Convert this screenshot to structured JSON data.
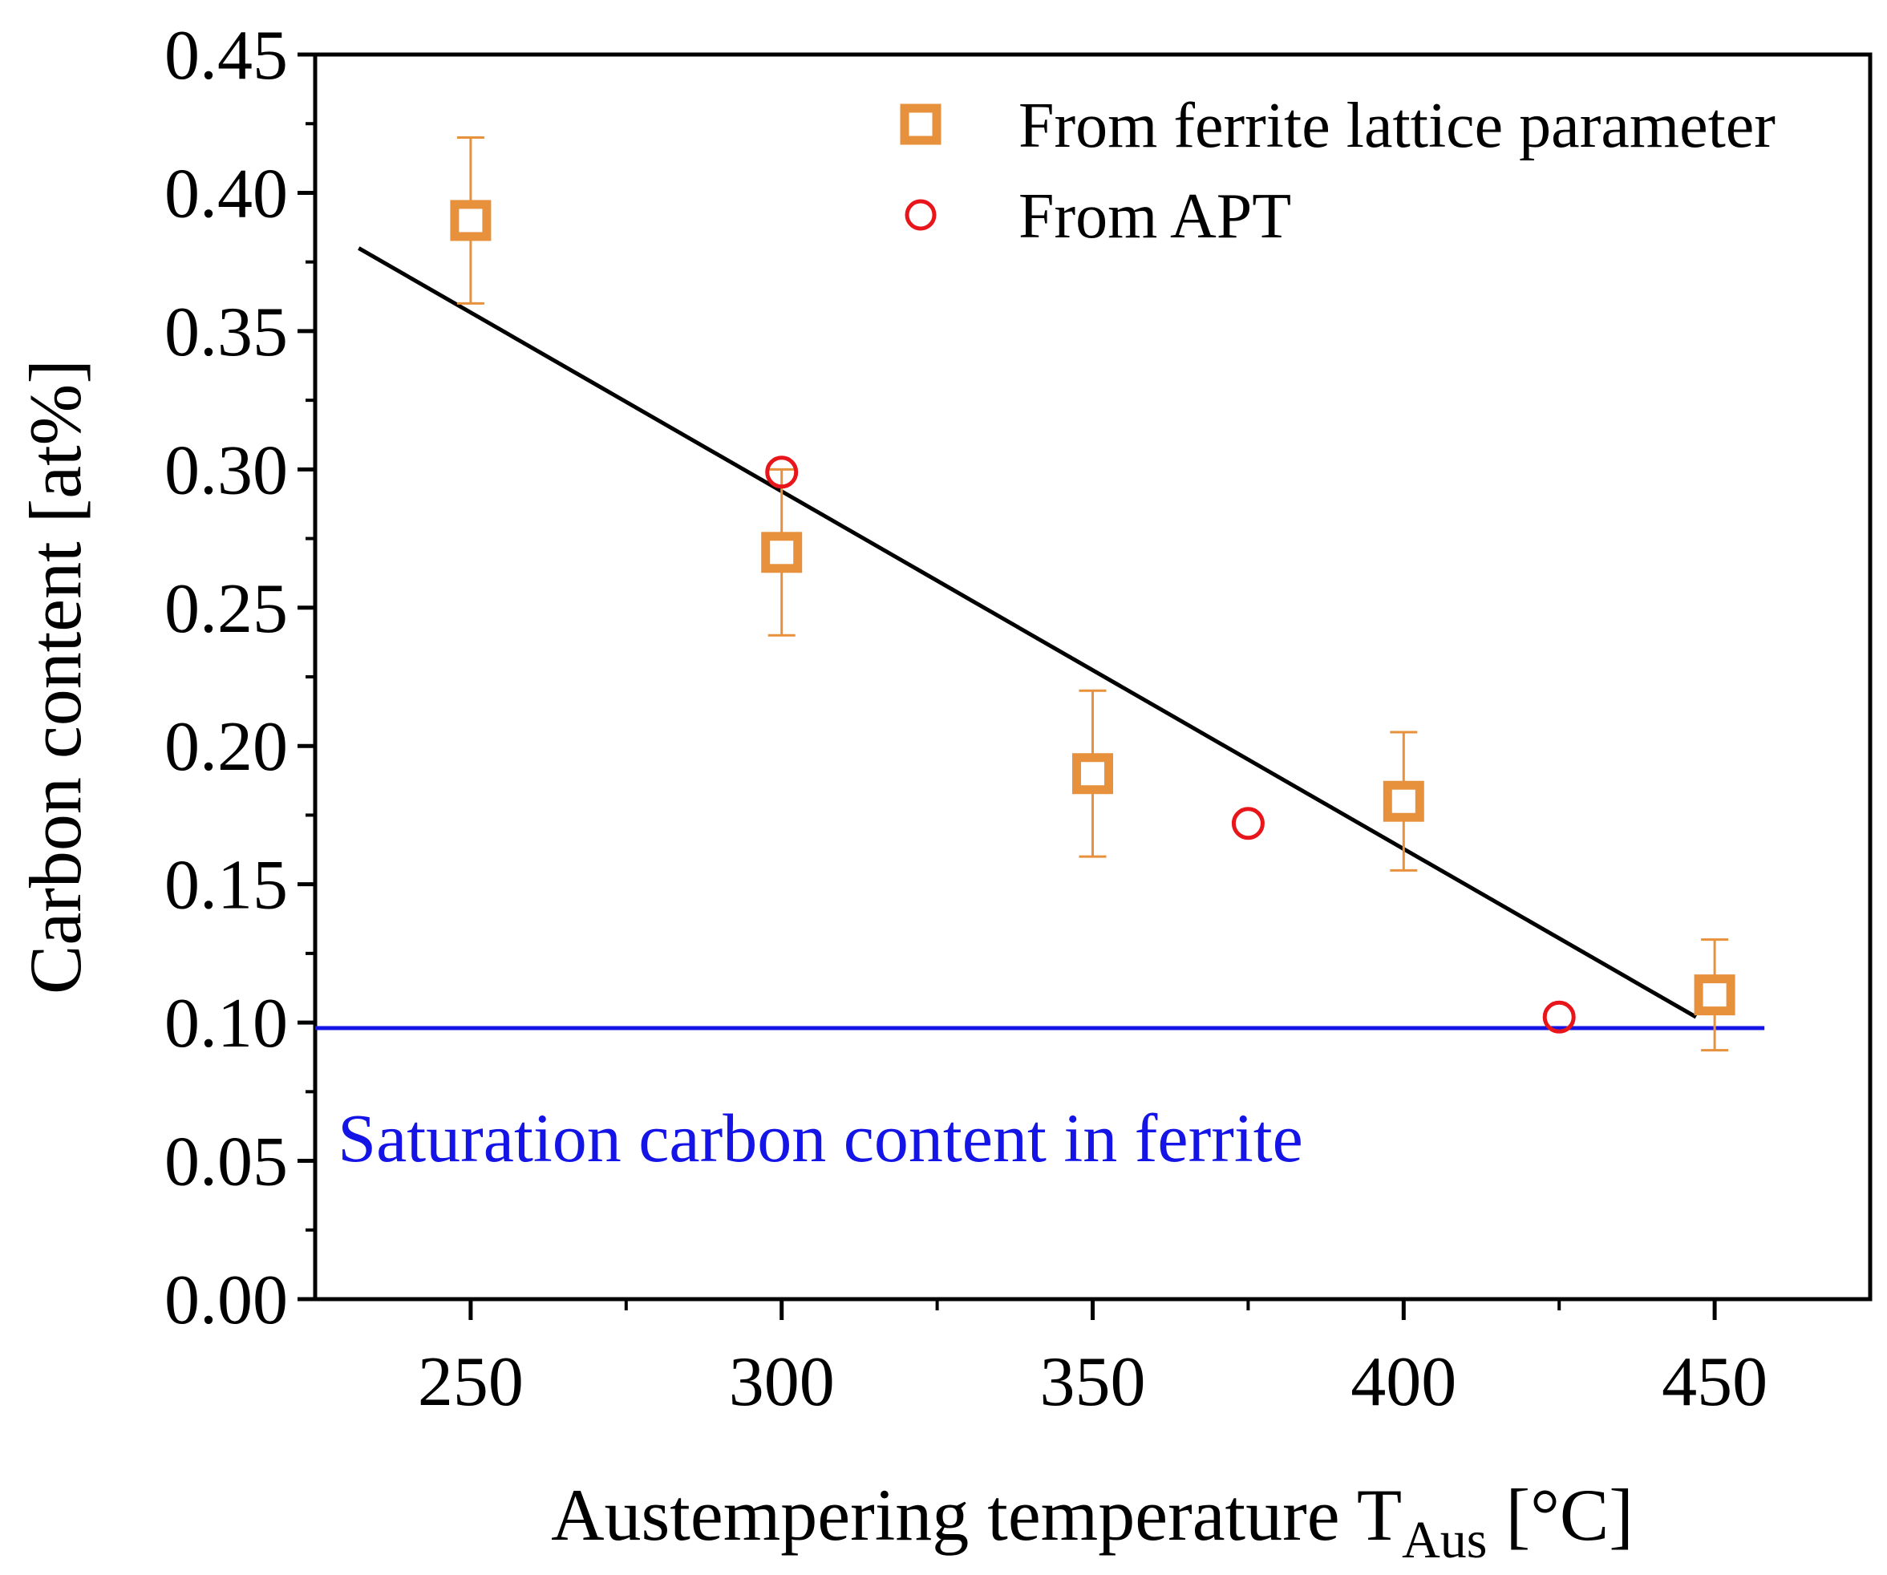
{
  "chart_data": {
    "type": "scatter",
    "title": "",
    "xlabel": "Austempering temperature T",
    "xlabel_sub": "Aus",
    "xlabel_unit": " [°C]",
    "ylabel": "Carbon content [at%]",
    "xlim": [
      225,
      475
    ],
    "ylim": [
      0,
      0.45
    ],
    "x_ticks": [
      250,
      300,
      350,
      400,
      450
    ],
    "y_ticks": [
      0.0,
      0.05,
      0.1,
      0.15,
      0.2,
      0.25,
      0.3,
      0.35,
      0.4,
      0.45
    ],
    "y_tick_labels": [
      "0.00",
      "0.05",
      "0.10",
      "0.15",
      "0.20",
      "0.25",
      "0.30",
      "0.35",
      "0.40",
      "0.45"
    ],
    "grid": false,
    "legend_position": "top-right",
    "series": [
      {
        "name": "From ferrite lattice parameter",
        "marker": "open-square",
        "color": "#E8913C",
        "x": [
          250,
          300,
          350,
          400,
          450
        ],
        "y": [
          0.39,
          0.27,
          0.19,
          0.18,
          0.11
        ],
        "err_low": [
          0.03,
          0.03,
          0.03,
          0.025,
          0.02
        ],
        "err_high": [
          0.03,
          0.03,
          0.03,
          0.025,
          0.02
        ]
      },
      {
        "name": "From APT",
        "marker": "open-circle",
        "color": "#E8151B",
        "x": [
          300,
          375,
          425
        ],
        "y": [
          0.299,
          0.172,
          0.102
        ]
      }
    ],
    "fit_line": {
      "name": "linear fit",
      "color": "#000000",
      "x": [
        232,
        447
      ],
      "y": [
        0.38,
        0.102
      ]
    },
    "reference_line": {
      "name": "Saturation carbon content in ferrite",
      "color": "#1414E6",
      "y": 0.098,
      "x": [
        225,
        458
      ]
    },
    "annotation": {
      "text": "Saturation carbon content in ferrite",
      "color": "#1414E6",
      "x": 228,
      "y": 0.058
    }
  }
}
